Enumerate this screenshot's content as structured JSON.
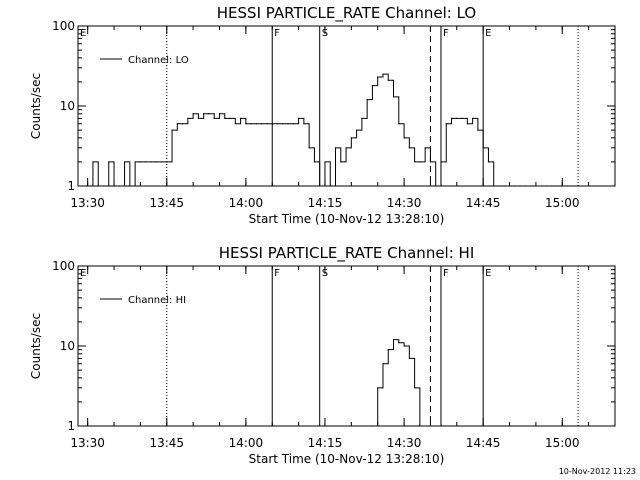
{
  "footer_timestamp": "10-Nov-2012 11:23",
  "chart_data": [
    {
      "type": "line",
      "title": "HESSI PARTICLE_RATE Channel: LO",
      "xlabel": "Start Time (10-Nov-12 13:28:10)",
      "ylabel": "Counts/sec",
      "yscale": "log",
      "ylim": [
        1,
        100
      ],
      "yticks": [
        "1",
        "10",
        "100"
      ],
      "xlim": [
        "13:28:10",
        "15:10:00"
      ],
      "xticks": [
        "13:30",
        "13:45",
        "14:00",
        "14:15",
        "14:30",
        "14:45",
        "15:00"
      ],
      "legend": "top-left",
      "series": [
        {
          "name": "Channel: LO",
          "x": [
            "13:29",
            "13:31",
            "13:32",
            "13:33",
            "13:34",
            "13:35",
            "13:36",
            "13:37",
            "13:38",
            "13:39",
            "13:40",
            "13:41",
            "13:42",
            "13:43",
            "13:44",
            "13:45",
            "13:46",
            "13:47",
            "13:48",
            "13:49",
            "13:50",
            "13:51",
            "13:52",
            "13:53",
            "13:54",
            "13:55",
            "13:56",
            "13:57",
            "13:58",
            "13:59",
            "14:00",
            "14:01",
            "14:02",
            "14:03",
            "14:04",
            "14:05",
            "14:06",
            "14:07",
            "14:08",
            "14:09",
            "14:10",
            "14:11",
            "14:12",
            "14:13",
            "14:14",
            "14:15",
            "14:16",
            "14:17",
            "14:18",
            "14:19",
            "14:20",
            "14:21",
            "14:22",
            "14:23",
            "14:24",
            "14:25",
            "14:26",
            "14:27",
            "14:28",
            "14:29",
            "14:30",
            "14:31",
            "14:32",
            "14:33",
            "14:34",
            "14:35",
            "14:36",
            "14:37",
            "14:38",
            "14:39",
            "14:40",
            "14:41",
            "14:42",
            "14:43",
            "14:44",
            "14:45",
            "14:46",
            "14:47",
            "14:48",
            "14:49",
            "14:50",
            "14:51",
            "14:52",
            "14:53",
            "14:54",
            "14:55",
            "14:56",
            "14:57",
            "14:58",
            "14:59",
            "15:00",
            "15:01"
          ],
          "y": [
            1,
            2,
            1,
            1,
            2,
            1,
            1,
            2,
            1,
            2,
            2,
            2,
            2,
            2,
            2,
            2,
            5,
            6,
            6,
            7,
            8,
            7,
            8,
            8,
            7,
            8,
            7,
            7,
            6,
            7,
            6,
            6,
            6,
            6,
            6,
            6,
            6,
            6,
            6,
            6,
            7,
            6,
            3,
            2,
            1,
            2,
            1,
            3,
            2,
            3,
            4,
            5,
            7,
            12,
            18,
            23,
            25,
            21,
            13,
            6,
            4,
            3,
            2,
            2,
            3,
            2,
            1,
            2,
            6,
            7,
            7,
            7,
            6,
            7,
            5,
            3,
            2,
            1,
            1,
            1,
            1,
            1,
            1,
            1,
            1,
            1,
            1,
            1,
            1,
            1,
            1,
            1
          ]
        }
      ],
      "markers": [
        {
          "time": "13:45",
          "style": "dotted",
          "label": ""
        },
        {
          "time": "14:05",
          "style": "solid",
          "label": "F"
        },
        {
          "time": "14:14",
          "style": "solid",
          "label": "S"
        },
        {
          "time": "14:35",
          "style": "dashed",
          "label": ""
        },
        {
          "time": "14:37",
          "style": "solid",
          "label": "F"
        },
        {
          "time": "14:45",
          "style": "solid",
          "label": "E"
        },
        {
          "time": "15:03",
          "style": "dotted",
          "label": ""
        }
      ],
      "corner_label": "E"
    },
    {
      "type": "line",
      "title": "HESSI PARTICLE_RATE Channel: HI",
      "xlabel": "Start Time (10-Nov-12 13:28:10)",
      "ylabel": "Counts/sec",
      "yscale": "log",
      "ylim": [
        1,
        100
      ],
      "yticks": [
        "1",
        "10",
        "100"
      ],
      "xlim": [
        "13:28:10",
        "15:10:00"
      ],
      "xticks": [
        "13:30",
        "13:45",
        "14:00",
        "14:15",
        "14:30",
        "14:45",
        "15:00"
      ],
      "legend": "top-left",
      "series": [
        {
          "name": "Channel: HI",
          "x": [
            "14:24",
            "14:25",
            "14:26",
            "14:27",
            "14:28",
            "14:29",
            "14:30",
            "14:31",
            "14:32",
            "14:33"
          ],
          "y": [
            1,
            3,
            6,
            9,
            12,
            11,
            10,
            7,
            3,
            1
          ]
        }
      ],
      "markers": [
        {
          "time": "13:45",
          "style": "dotted",
          "label": ""
        },
        {
          "time": "14:05",
          "style": "solid",
          "label": "F"
        },
        {
          "time": "14:14",
          "style": "solid",
          "label": "S"
        },
        {
          "time": "14:35",
          "style": "dashed",
          "label": ""
        },
        {
          "time": "14:37",
          "style": "solid",
          "label": "F"
        },
        {
          "time": "14:45",
          "style": "solid",
          "label": "E"
        },
        {
          "time": "15:03",
          "style": "dotted",
          "label": ""
        }
      ],
      "corner_label": "E"
    }
  ]
}
